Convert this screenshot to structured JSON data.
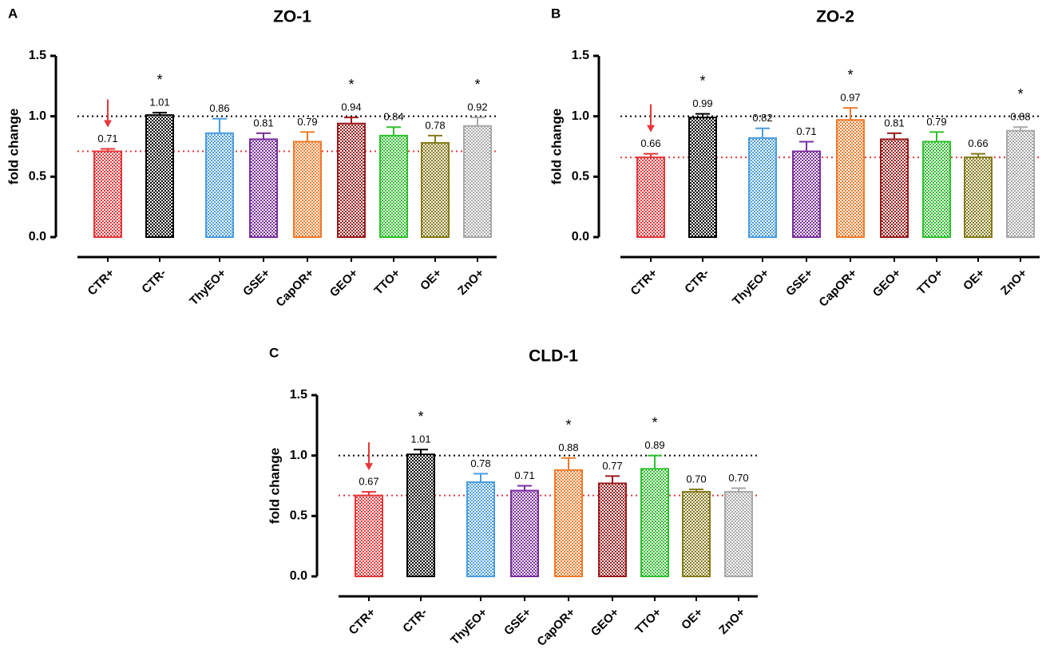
{
  "chart_data": [
    {
      "type": "bar",
      "panel": "A",
      "title": "ZO-1",
      "ylabel": "fold change",
      "categories": [
        "CTR+",
        "CTR-",
        "ThyEO+",
        "GSE+",
        "CapOR+",
        "GEO+",
        "TTO+",
        "OE+",
        "ZnO+"
      ],
      "values": [
        0.71,
        1.01,
        0.86,
        0.81,
        0.79,
        0.94,
        0.84,
        0.78,
        0.92
      ],
      "value_labels": [
        "0.71",
        "1.01",
        "0.86",
        "0.81",
        "0.79",
        "0.94",
        "0.84",
        "0.78",
        "0.92"
      ],
      "errors": [
        0.02,
        0.02,
        0.12,
        0.05,
        0.08,
        0.05,
        0.07,
        0.06,
        0.07
      ],
      "colors": [
        "#e8373a",
        "#000000",
        "#4a9de0",
        "#7b2fa0",
        "#f07a2a",
        "#9b1b1b",
        "#2ec02e",
        "#857a1a",
        "#a8a8a8"
      ],
      "annotations": [
        {
          "category": "CTR-",
          "text": "*"
        },
        {
          "category": "GEO+",
          "text": "*"
        },
        {
          "category": "ZnO+",
          "text": "*"
        }
      ],
      "reference_lines": [
        {
          "value": 1.0,
          "color": "#000000"
        },
        {
          "value": 0.71,
          "color": "#e8373a"
        }
      ],
      "ylim": [
        0,
        1.5
      ],
      "yticks": [
        {
          "value": 0,
          "label": "0.0"
        },
        0.5,
        {
          "value": 1,
          "label": "1.0"
        },
        1.5
      ]
    },
    {
      "type": "bar",
      "panel": "B",
      "title": "ZO-2",
      "ylabel": "fold change",
      "categories": [
        "CTR+",
        "CTR-",
        "ThyEO+",
        "GSE+",
        "CapOR+",
        "GEO+",
        "TTO+",
        "OE+",
        "ZnO+"
      ],
      "values": [
        0.66,
        0.99,
        0.82,
        0.71,
        0.97,
        0.81,
        0.79,
        0.66,
        0.88
      ],
      "value_labels": [
        "0.66",
        "0.99",
        "0.82",
        "0.71",
        "0.97",
        "0.81",
        "0.79",
        "0.66",
        "0.88"
      ],
      "errors": [
        0.03,
        0.03,
        0.08,
        0.08,
        0.1,
        0.05,
        0.08,
        0.03,
        0.03
      ],
      "colors": [
        "#e8373a",
        "#000000",
        "#4a9de0",
        "#7b2fa0",
        "#f07a2a",
        "#9b1b1b",
        "#2ec02e",
        "#857a1a",
        "#a8a8a8"
      ],
      "annotations": [
        {
          "category": "CTR-",
          "text": "*"
        },
        {
          "category": "CapOR+",
          "text": "*"
        },
        {
          "category": "ZnO+",
          "text": "*"
        }
      ],
      "reference_lines": [
        {
          "value": 1.0,
          "color": "#000000"
        },
        {
          "value": 0.66,
          "color": "#e8373a"
        }
      ],
      "ylim": [
        0,
        1.5
      ],
      "yticks": [
        {
          "value": 0,
          "label": "0.0"
        },
        0.5,
        {
          "value": 1,
          "label": "1.0"
        },
        1.5
      ]
    },
    {
      "type": "bar",
      "panel": "C",
      "title": "CLD-1",
      "ylabel": "fold change",
      "categories": [
        "CTR+",
        "CTR-",
        "ThyEO+",
        "GSE+",
        "CapOR+",
        "GEO+",
        "TTO+",
        "OE+",
        "ZnO+"
      ],
      "values": [
        0.67,
        1.01,
        0.78,
        0.71,
        0.88,
        0.77,
        0.89,
        0.7,
        0.7
      ],
      "value_labels": [
        "0.67",
        "1.01",
        "0.78",
        "0.71",
        "0.88",
        "0.77",
        "0.89",
        "0.70",
        "0.70"
      ],
      "errors": [
        0.03,
        0.04,
        0.07,
        0.04,
        0.1,
        0.06,
        0.11,
        0.02,
        0.03
      ],
      "colors": [
        "#e8373a",
        "#000000",
        "#4a9de0",
        "#7b2fa0",
        "#f07a2a",
        "#9b1b1b",
        "#2ec02e",
        "#857a1a",
        "#a8a8a8"
      ],
      "annotations": [
        {
          "category": "CTR-",
          "text": "*"
        },
        {
          "category": "CapOR+",
          "text": "*"
        },
        {
          "category": "TTO+",
          "text": "*"
        }
      ],
      "reference_lines": [
        {
          "value": 1.0,
          "color": "#000000"
        },
        {
          "value": 0.67,
          "color": "#e8373a"
        }
      ],
      "ylim": [
        0,
        1.5
      ],
      "yticks": [
        {
          "value": 0,
          "label": "0.0"
        },
        0.5,
        {
          "value": 1,
          "label": "1.0"
        },
        1.5
      ]
    }
  ]
}
